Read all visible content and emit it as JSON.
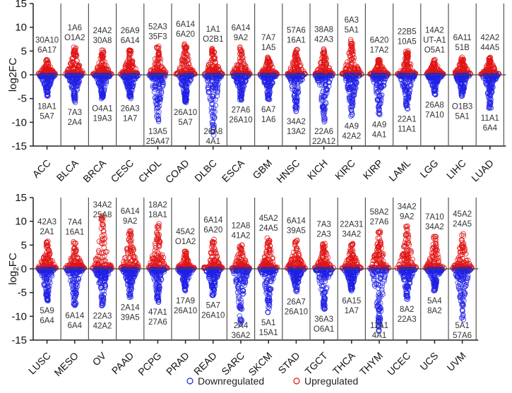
{
  "chart_data": {
    "type": "scatter",
    "ylabel": "log2FC",
    "ylabel_main": "log",
    "ylabel_sub": "2",
    "ylabel_tail": "FC",
    "ylim": [
      -15,
      15
    ],
    "yticks": [
      15,
      10,
      5,
      0,
      -5,
      -10,
      -15
    ],
    "grid": false,
    "legend_placement": "bottom-center",
    "colors": {
      "down": "#1f1fe6",
      "up": "#e01414",
      "axis": "#222222",
      "label": "#333333"
    },
    "legend": [
      {
        "name": "Downregulated",
        "color": "#1f1fe6"
      },
      {
        "name": "Upregulated",
        "color": "#e01414"
      }
    ],
    "panels": [
      {
        "categories": [
          {
            "name": "ACC",
            "top": [
              "30A10",
              "6A17"
            ],
            "bottom": [
              "18A1",
              "5A7"
            ],
            "max_up": 3.2,
            "min_down": -4.5
          },
          {
            "name": "BLCA",
            "top": [
              "1A6",
              "O1A2"
            ],
            "bottom": [
              "7A3",
              "2A4"
            ],
            "max_up": 5.8,
            "min_down": -5.8
          },
          {
            "name": "BRCA",
            "top": [
              "24A2",
              "30A8"
            ],
            "bottom": [
              "O4A1",
              "19A3"
            ],
            "max_up": 5.2,
            "min_down": -5.0
          },
          {
            "name": "CESC",
            "top": [
              "26A9",
              "6A14"
            ],
            "bottom": [
              "26A3",
              "1A7"
            ],
            "max_up": 5.2,
            "min_down": -5.0
          },
          {
            "name": "CHOL",
            "top": [
              "52A3",
              "35F3"
            ],
            "bottom": [
              "13A5",
              "25A47"
            ],
            "max_up": 6.0,
            "min_down": -9.8
          },
          {
            "name": "COAD",
            "top": [
              "6A14",
              "6A20"
            ],
            "bottom": [
              "26A10",
              "5A7"
            ],
            "max_up": 6.5,
            "min_down": -5.8
          },
          {
            "name": "DLBC",
            "top": [
              "1A1",
              "O2B1"
            ],
            "bottom": [
              "26A8",
              "4A1"
            ],
            "max_up": 5.5,
            "min_down": -12.7
          },
          {
            "name": "ESCA",
            "top": [
              "6A14",
              "9A2"
            ],
            "bottom": [
              "27A6",
              "26A10"
            ],
            "max_up": 5.8,
            "min_down": -5.3
          },
          {
            "name": "GBM",
            "top": [
              "7A7",
              "1A5"
            ],
            "bottom": [
              "6A7",
              "1A6"
            ],
            "max_up": 3.7,
            "min_down": -5.2
          },
          {
            "name": "HNSC",
            "top": [
              "57A6",
              "16A1"
            ],
            "bottom": [
              "34A2",
              "13A2"
            ],
            "max_up": 5.3,
            "min_down": -7.7
          },
          {
            "name": "KICH",
            "top": [
              "38A8",
              "42A3"
            ],
            "bottom": [
              "22A6",
              "22A12"
            ],
            "max_up": 5.4,
            "min_down": -9.9
          },
          {
            "name": "KIRC",
            "top": [
              "6A3",
              "5A1"
            ],
            "bottom": [
              "4A9",
              "42A2"
            ],
            "max_up": 7.4,
            "min_down": -8.7
          },
          {
            "name": "KIRP",
            "top": [
              "6A20",
              "17A2"
            ],
            "bottom": [
              "4A9",
              "4A1"
            ],
            "max_up": 3.2,
            "min_down": -8.4
          },
          {
            "name": "LAML",
            "top": [
              "22B5",
              "10A5"
            ],
            "bottom": [
              "22A1",
              "11A1"
            ],
            "max_up": 5.0,
            "min_down": -7.2
          },
          {
            "name": "LGG",
            "top": [
              "14A2",
              "UT-A1",
              "O5A1"
            ],
            "bottom": [
              "26A8",
              "7A10"
            ],
            "max_up": 3.2,
            "min_down": -4.2
          },
          {
            "name": "LIHC",
            "top": [
              "6A11",
              "51B"
            ],
            "bottom": [
              "O1B3",
              "5A1"
            ],
            "max_up": 3.7,
            "min_down": -4.5
          },
          {
            "name": "LUAD",
            "top": [
              "42A2",
              "44A5"
            ],
            "bottom": [
              "11A1",
              "6A4"
            ],
            "max_up": 3.7,
            "min_down": -7.0
          }
        ]
      },
      {
        "categories": [
          {
            "name": "LUSC",
            "top": [
              "42A3",
              "2A1"
            ],
            "bottom": [
              "5A9",
              "6A4"
            ],
            "max_up": 5.8,
            "min_down": -6.7
          },
          {
            "name": "MESO",
            "top": [
              "7A4",
              "16A1"
            ],
            "bottom": [
              "6A14",
              "6A4"
            ],
            "max_up": 5.7,
            "min_down": -7.7
          },
          {
            "name": "OV",
            "top": [
              "34A2",
              "25A8"
            ],
            "bottom": [
              "22A3",
              "42A2"
            ],
            "max_up": 11.2,
            "min_down": -7.8
          },
          {
            "name": "PAAD",
            "top": [
              "6A14",
              "9A2"
            ],
            "bottom": [
              "2A14",
              "39A5"
            ],
            "max_up": 8.0,
            "min_down": -6.0
          },
          {
            "name": "PCPG",
            "top": [
              "18A2",
              "18A1"
            ],
            "bottom": [
              "47A1",
              "27A6"
            ],
            "max_up": 9.5,
            "min_down": -7.0
          },
          {
            "name": "PRAD",
            "top": [
              "45A2",
              "O1A2"
            ],
            "bottom": [
              "17A9",
              "26A10"
            ],
            "max_up": 3.7,
            "min_down": -4.6
          },
          {
            "name": "READ",
            "top": [
              "6A14",
              "6A20"
            ],
            "bottom": [
              "5A7",
              "26A10"
            ],
            "max_up": 6.2,
            "min_down": -5.6
          },
          {
            "name": "SARC",
            "top": [
              "12A8",
              "41A2"
            ],
            "bottom": [
              "2A4",
              "36A2"
            ],
            "max_up": 5.0,
            "min_down": -11.7
          },
          {
            "name": "SKCM",
            "top": [
              "45A2",
              "24A5"
            ],
            "bottom": [
              "5A1",
              "15A1"
            ],
            "max_up": 6.5,
            "min_down": -9.2
          },
          {
            "name": "STAD",
            "top": [
              "6A14",
              "39A5"
            ],
            "bottom": [
              "26A7",
              "26A10"
            ],
            "max_up": 6.0,
            "min_down": -4.8
          },
          {
            "name": "TGCT",
            "top": [
              "7A3",
              "2A3"
            ],
            "bottom": [
              "36A3",
              "O6A1"
            ],
            "max_up": 5.3,
            "min_down": -8.5
          },
          {
            "name": "THCA",
            "top": [
              "22A31",
              "34A2"
            ],
            "bottom": [
              "6A15",
              "1A7"
            ],
            "max_up": 5.3,
            "min_down": -4.6
          },
          {
            "name": "THYM",
            "top": [
              "58A2",
              "27A6"
            ],
            "bottom": [
              "11A1",
              "4A1"
            ],
            "max_up": 7.9,
            "min_down": -13.2
          },
          {
            "name": "UCEC",
            "top": [
              "34A2",
              "9A2"
            ],
            "bottom": [
              "8A2",
              "22A3"
            ],
            "max_up": 9.0,
            "min_down": -6.4
          },
          {
            "name": "UCS",
            "top": [
              "7A10",
              "34A2"
            ],
            "bottom": [
              "5A4",
              "8A2"
            ],
            "max_up": 6.8,
            "min_down": -4.6
          },
          {
            "name": "UVM",
            "top": [
              "45A2",
              "24A5"
            ],
            "bottom": [
              "5A1",
              "57A6"
            ],
            "max_up": 7.4,
            "min_down": -10.7
          }
        ]
      }
    ]
  }
}
